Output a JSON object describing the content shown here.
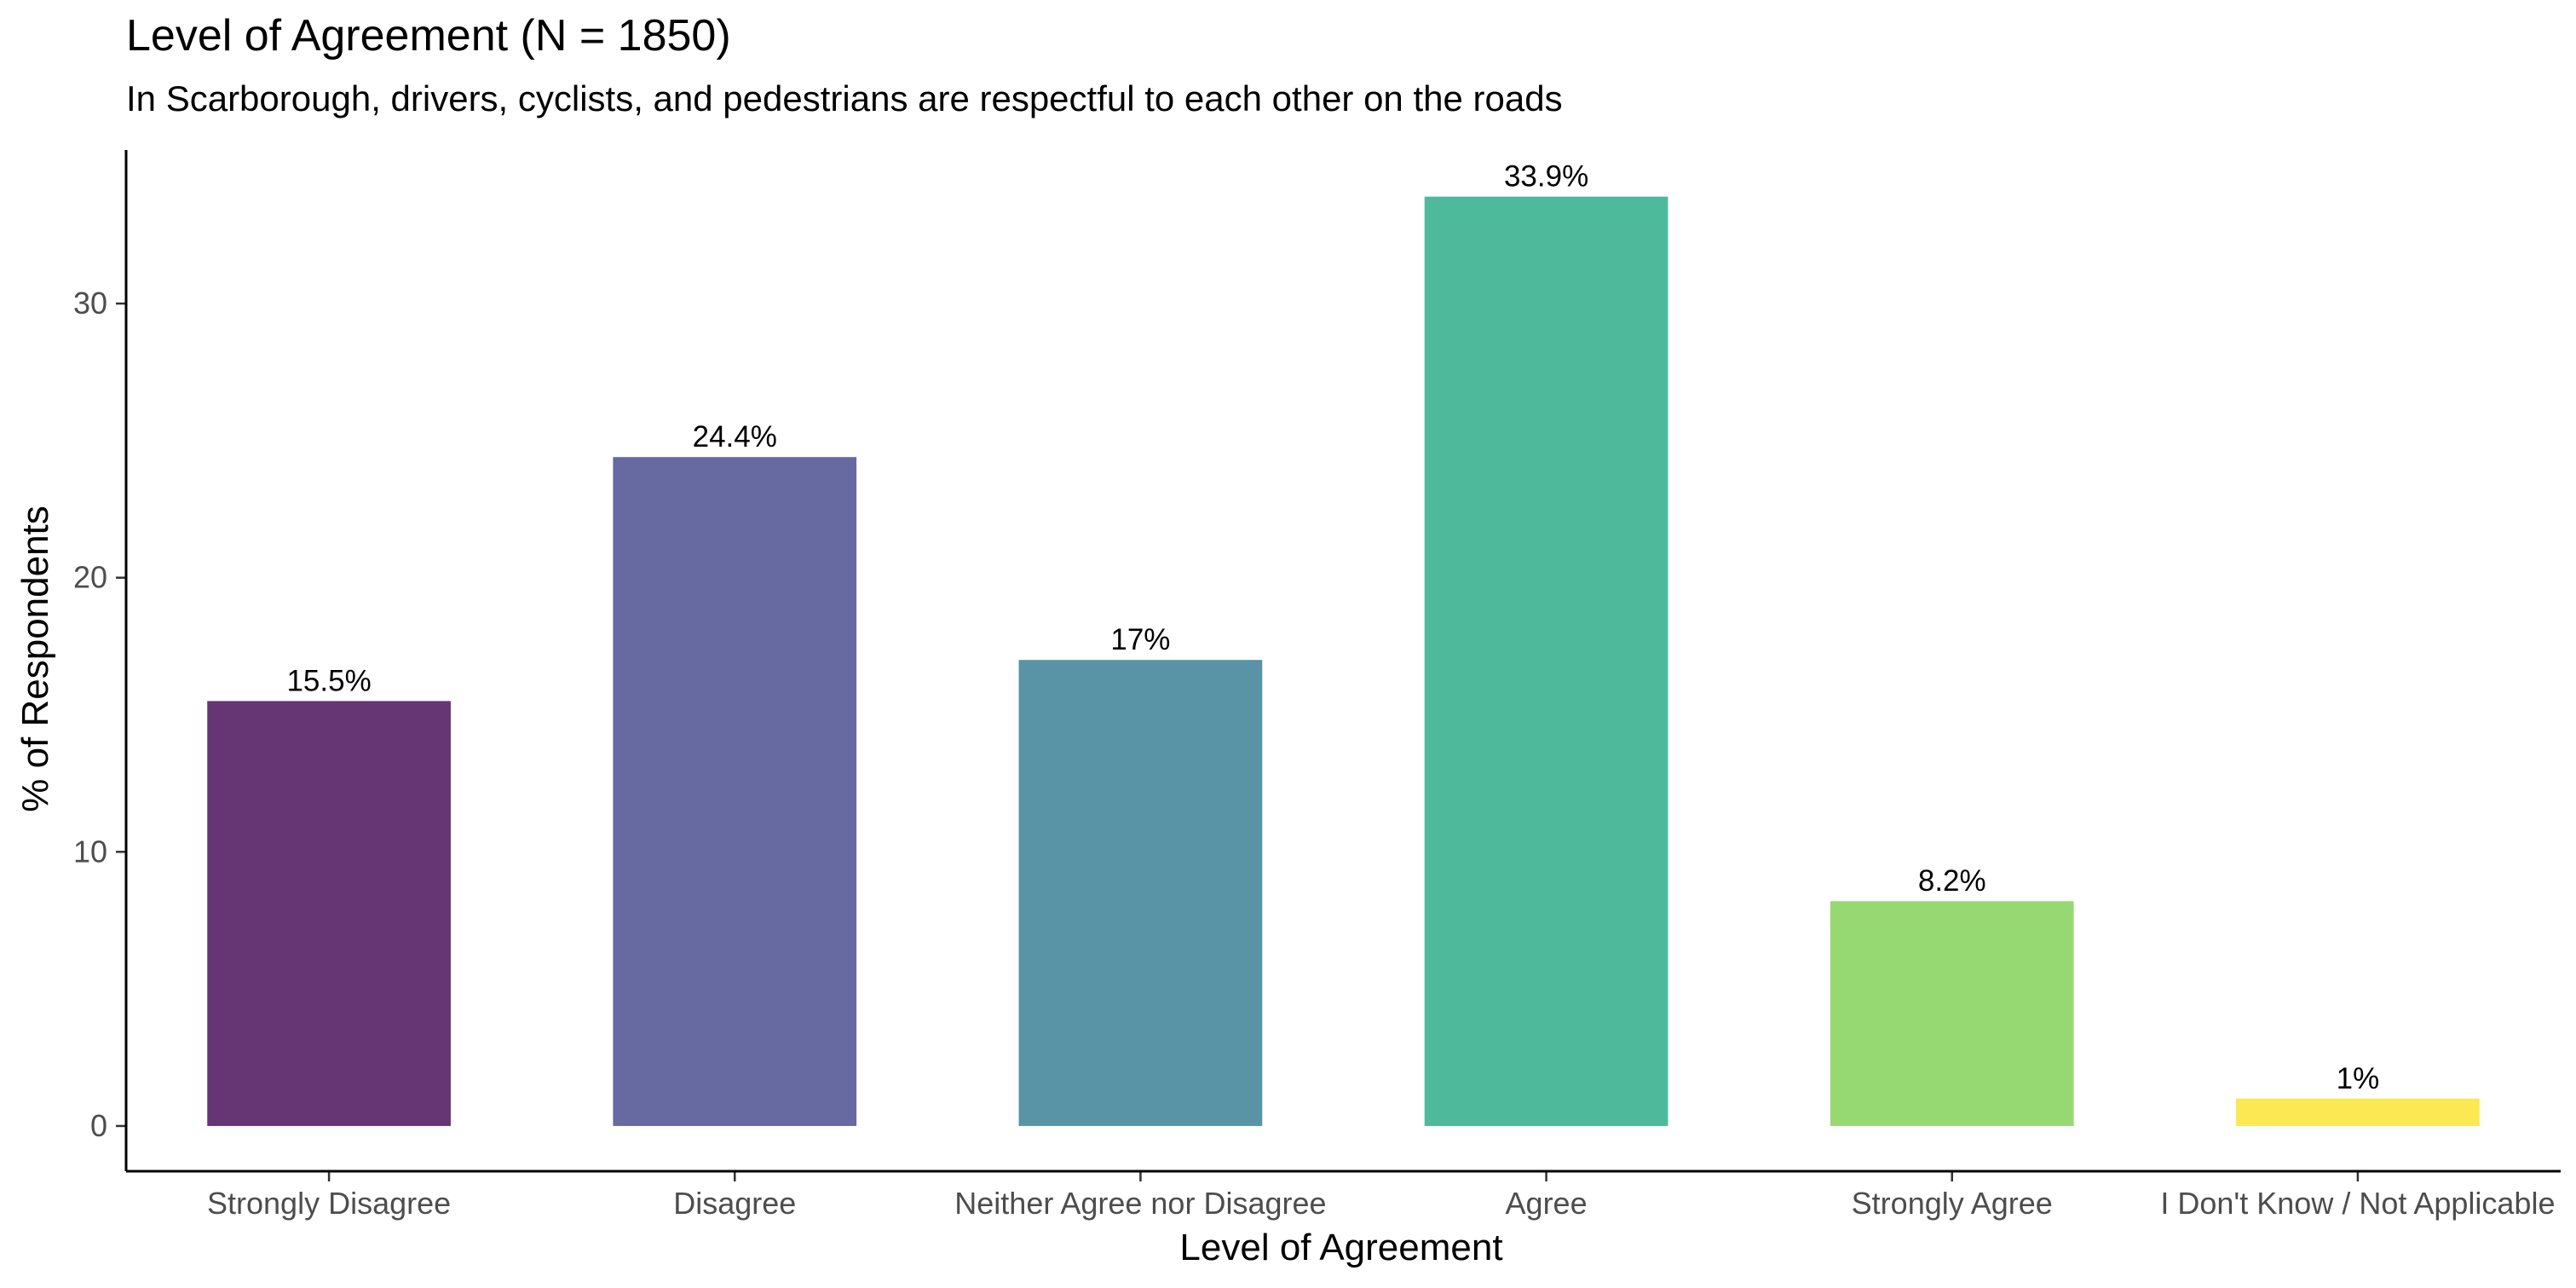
{
  "chart_data": {
    "type": "bar",
    "title": "Level of Agreement (N = 1850)",
    "subtitle": "In Scarborough, drivers, cyclists, and pedestrians are respectful to each other on the roads",
    "xlabel": "Level of Agreement",
    "ylabel": "% of Respondents",
    "categories": [
      "Strongly Disagree",
      "Disagree",
      "Neither Agree nor Disagree",
      "Agree",
      "Strongly Agree",
      "I Don't Know / Not Applicable"
    ],
    "values": [
      15.5,
      24.4,
      17,
      33.9,
      8.2,
      1
    ],
    "data_labels": [
      "15.5%",
      "24.4%",
      "17%",
      "33.9%",
      "8.2%",
      "1%"
    ],
    "yticks": [
      0,
      10,
      20,
      30
    ],
    "ylim": [
      -1.65,
      35.6
    ],
    "grid": false,
    "legend": "none",
    "colors": [
      "#663573",
      "#676aa0",
      "#5893a6",
      "#4fb99c",
      "#96d973",
      "#fbe852"
    ]
  }
}
